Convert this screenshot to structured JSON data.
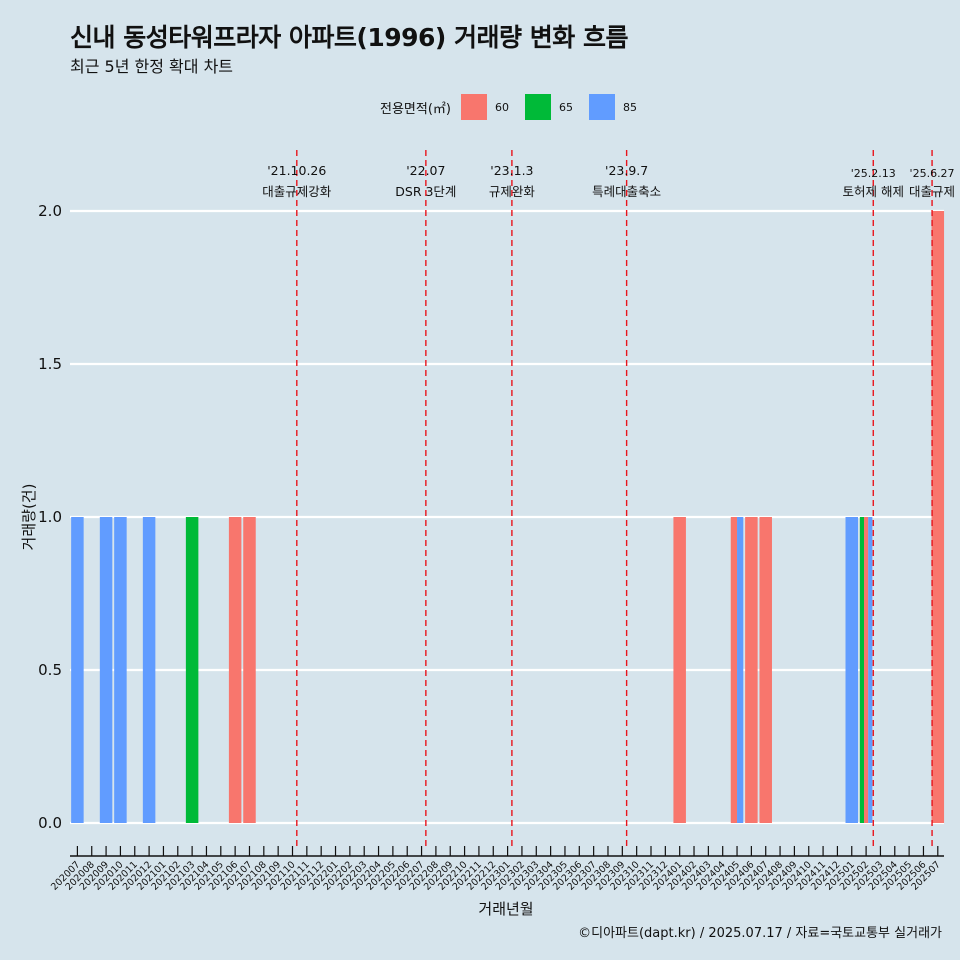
{
  "title": "신내 동성타워프라자 아파트(1996) 거래량 변화 흐름",
  "subtitle": "최근 5년 한정 확대 차트",
  "caption": "©디아파트(dapt.kr) / 2025.07.17 / 자료=국토교통부 실거래가",
  "legend": {
    "title": "전용면적(㎡)",
    "items": [
      {
        "label": "60",
        "color": "#f8766d"
      },
      {
        "label": "65",
        "color": "#00ba38"
      },
      {
        "label": "85",
        "color": "#619cff"
      }
    ]
  },
  "chart_data": {
    "type": "bar",
    "title": "신내 동성타워프라자 아파트(1996) 거래량 변화 흐름",
    "subtitle": "최근 5년 한정 확대 차트",
    "xlabel": "거래년월",
    "ylabel": "거래량(건)",
    "ylim": [
      0,
      2.1
    ],
    "yticks": [
      0.0,
      0.5,
      1.0,
      1.5,
      2.0
    ],
    "ytick_labels": [
      "0.0",
      "0.5",
      "1.0",
      "1.5",
      "2.0"
    ],
    "grid": true,
    "legend_position": "top",
    "categories": [
      "202007",
      "202008",
      "202009",
      "202010",
      "202011",
      "202012",
      "202101",
      "202102",
      "202103",
      "202104",
      "202105",
      "202106",
      "202107",
      "202108",
      "202109",
      "202110",
      "202111",
      "202112",
      "202201",
      "202202",
      "202203",
      "202204",
      "202205",
      "202206",
      "202207",
      "202208",
      "202209",
      "202210",
      "202211",
      "202212",
      "202301",
      "202302",
      "202303",
      "202304",
      "202305",
      "202306",
      "202307",
      "202308",
      "202309",
      "202310",
      "202311",
      "202312",
      "202401",
      "202402",
      "202403",
      "202404",
      "202405",
      "202406",
      "202407",
      "202408",
      "202409",
      "202410",
      "202411",
      "202412",
      "202501",
      "202502",
      "202503",
      "202504",
      "202505",
      "202506",
      "202507"
    ],
    "bars": [
      {
        "month": "202007",
        "area": "85",
        "value": 1
      },
      {
        "month": "202009",
        "area": "85",
        "value": 1
      },
      {
        "month": "202010",
        "area": "85",
        "value": 1
      },
      {
        "month": "202012",
        "area": "85",
        "value": 1
      },
      {
        "month": "202103",
        "area": "65",
        "value": 1
      },
      {
        "month": "202106",
        "area": "60",
        "value": 1
      },
      {
        "month": "202107",
        "area": "60",
        "value": 1
      },
      {
        "month": "202401",
        "area": "60",
        "value": 1
      },
      {
        "month": "202405",
        "area": "60",
        "value": 1
      },
      {
        "month": "202405",
        "area": "85",
        "value": 1
      },
      {
        "month": "202406",
        "area": "60",
        "value": 1
      },
      {
        "month": "202407",
        "area": "60",
        "value": 1
      },
      {
        "month": "202501",
        "area": "85",
        "value": 1
      },
      {
        "month": "202502",
        "area": "65",
        "value": 1
      },
      {
        "month": "202502",
        "area": "60",
        "value": 1
      },
      {
        "month": "202502",
        "area": "85",
        "value": 1
      },
      {
        "month": "202507",
        "area": "60",
        "value": 2
      }
    ],
    "events": [
      {
        "x": 15.3,
        "date": "'21.10.26",
        "label": "대출규제강화"
      },
      {
        "x": 24.3,
        "date": "'22.07",
        "label": "DSR 3단계"
      },
      {
        "x": 30.3,
        "date": "'23.1.3",
        "label": "규제완화"
      },
      {
        "x": 38.3,
        "date": "'23.9.7",
        "label": "특례대출축소"
      },
      {
        "x": 55.5,
        "date": "'25.2.13",
        "label": "토허제 해제"
      },
      {
        "x": 59.6,
        "date": "'25.6.27",
        "label": "대출규제"
      }
    ]
  }
}
